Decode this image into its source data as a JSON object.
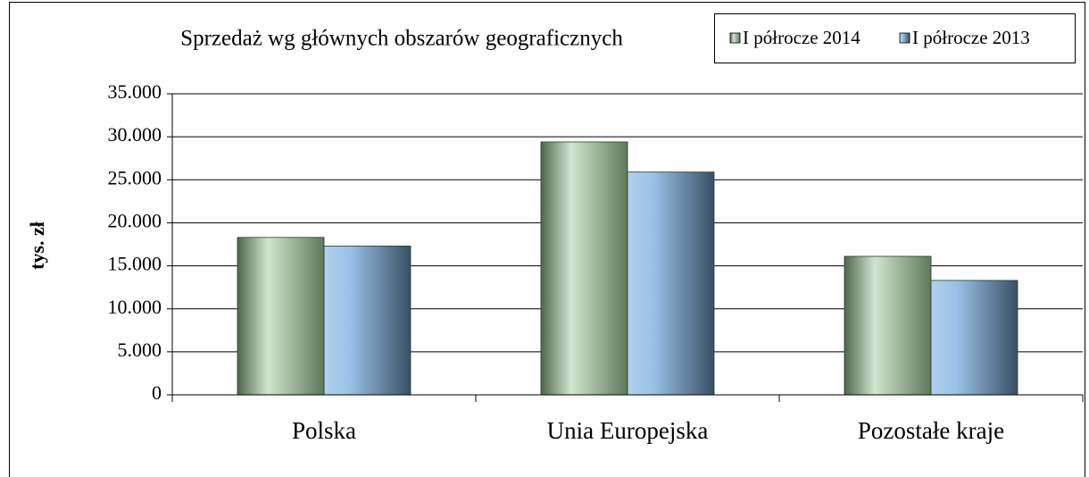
{
  "chart_data": {
    "type": "bar",
    "title": "Sprzedaż wg głównych obszarów geograficznych",
    "ylabel": "tys. zł",
    "categories": [
      "Polska",
      "Unia Europejska",
      "Pozostałe kraje"
    ],
    "series": [
      {
        "name": "I półrocze 2014",
        "color": "#8fbc8a",
        "values": [
          18300,
          29400,
          16100
        ]
      },
      {
        "name": "I półrocze 2013",
        "color": "#7fb2e0",
        "values": [
          17300,
          25900,
          13300
        ]
      }
    ],
    "ylim": [
      0,
      35000
    ],
    "yticks": [
      0,
      {
        "value": 5000,
        "label": "5.000"
      },
      {
        "value": 10000,
        "label": "10.000"
      },
      {
        "value": 15000,
        "label": "15.000"
      },
      {
        "value": 20000,
        "label": "20.000"
      },
      {
        "value": 25000,
        "label": "25.000"
      },
      {
        "value": 30000,
        "label": "30.000"
      },
      {
        "value": 35000,
        "label": "35.000"
      }
    ],
    "grid": true,
    "legend": "top-right"
  }
}
